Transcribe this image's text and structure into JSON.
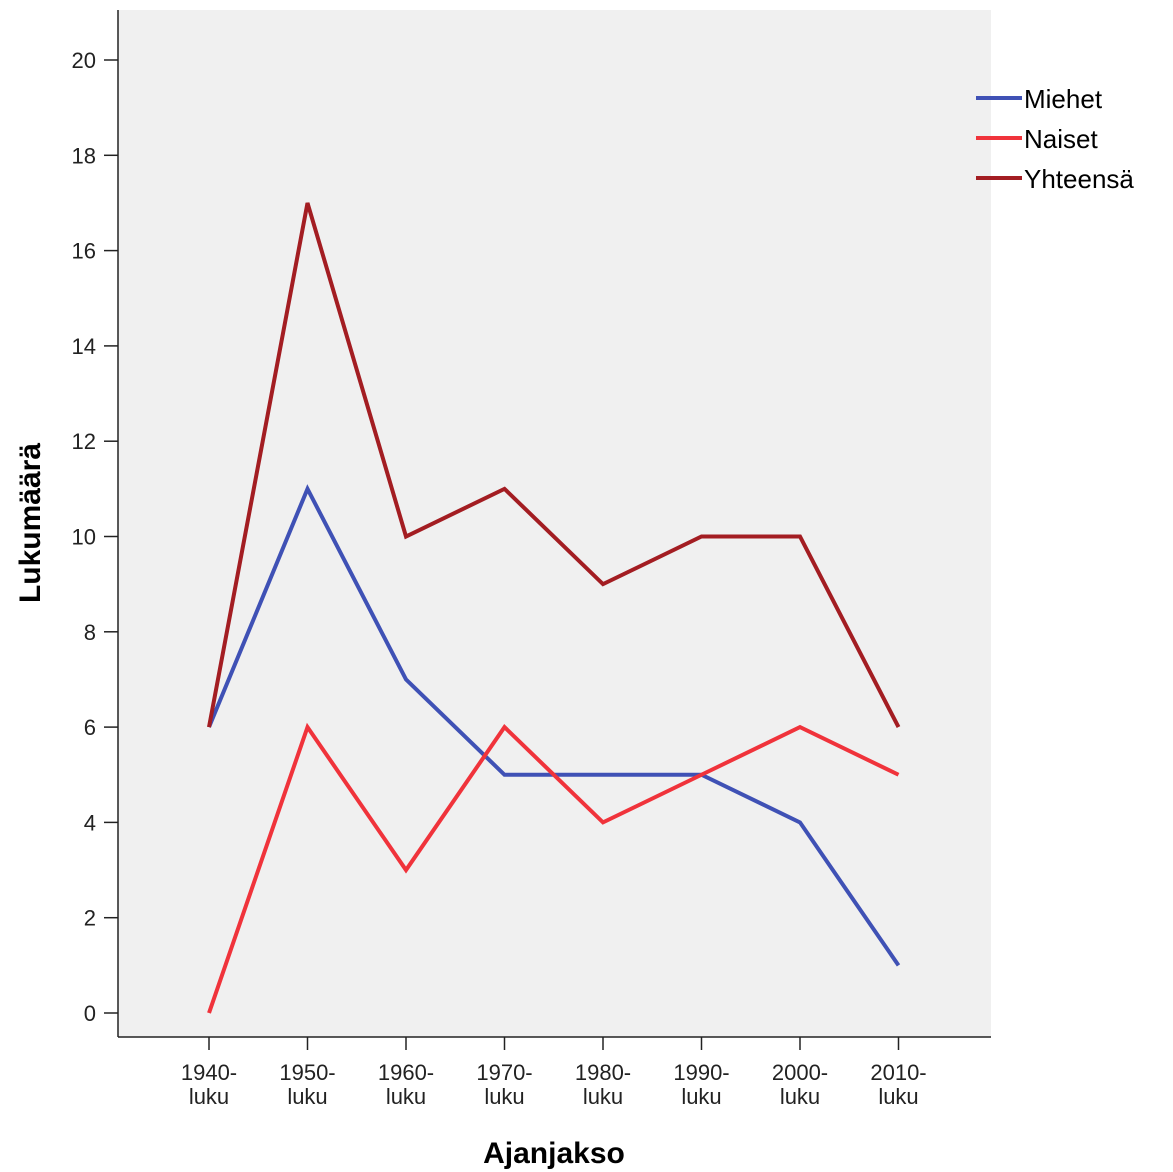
{
  "chart_data": {
    "type": "line",
    "xlabel": "Ajanjakso",
    "ylabel": "Lukumäärä",
    "categories": [
      [
        "1940-",
        "luku"
      ],
      [
        "1950-",
        "luku"
      ],
      [
        "1960-",
        "luku"
      ],
      [
        "1970-",
        "luku"
      ],
      [
        "1980-",
        "luku"
      ],
      [
        "1990-",
        "luku"
      ],
      [
        "2000-",
        "luku"
      ],
      [
        "2010-",
        "luku"
      ]
    ],
    "ylim": [
      0,
      20
    ],
    "yticks": [
      "0",
      "2",
      "4",
      "6",
      "8",
      "10",
      "12",
      "14",
      "16",
      "18",
      "20"
    ],
    "grid": false,
    "legend_position": "right",
    "series": [
      {
        "name": "Miehet",
        "color": "#3f51b5",
        "values": [
          6,
          11,
          7,
          5,
          5,
          5,
          4,
          1
        ]
      },
      {
        "name": "Naiset",
        "color": "#f0333b",
        "values": [
          0,
          6,
          3,
          6,
          4,
          5,
          6,
          5
        ]
      },
      {
        "name": "Yhteensä",
        "color": "#a31d22",
        "values": [
          6,
          17,
          10,
          11,
          9,
          10,
          10,
          6
        ]
      }
    ],
    "plot_background": "#f0f0f0"
  }
}
